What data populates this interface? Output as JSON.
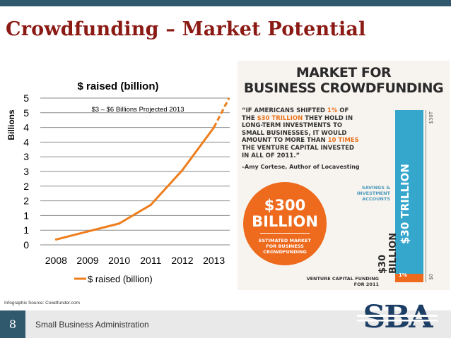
{
  "slide": {
    "title": "Crowdfunding – Market Potential",
    "source": "Infographic  Source: Cowdfunder.com",
    "page_number": "8",
    "footer_text": "Small Business Administration",
    "logo_text": "SBA"
  },
  "chart_data": {
    "type": "line",
    "title": "$ raised (billion)",
    "ylabel": "Billions",
    "xlabel": "",
    "categories": [
      "2008",
      "2009",
      "2010",
      "2011",
      "2012",
      "2013"
    ],
    "y_tick_labels": [
      "0",
      "1",
      "1",
      "2",
      "2",
      "3",
      "3",
      "4",
      "4",
      "5",
      "5"
    ],
    "ylim": [
      0,
      5.5
    ],
    "series": [
      {
        "name": "$ raised (billion)",
        "color": "#ee7d1c",
        "values": [
          0.2,
          0.5,
          0.8,
          1.5,
          2.8,
          4.4
        ],
        "projected": {
          "from": "2013",
          "value": 5.5
        }
      }
    ],
    "annotation": "$3 – $6 Billions Projected 2013",
    "grid": true,
    "legend": "bottom"
  },
  "infographic": {
    "heading_line1": "MARKET FOR",
    "heading_line2": "BUSINESS CROWDFUNDING",
    "quote_parts": [
      {
        "text": "“IF AMERICANS SHIFTED ",
        "hl": false
      },
      {
        "text": "1%",
        "hl": true
      },
      {
        "text": " OF THE ",
        "hl": false
      },
      {
        "text": "$30 TRILLION",
        "hl": true
      },
      {
        "text": " THEY HOLD IN LONG-TERM INVESTMENTS TO SMALL BUSINESSES, IT WOULD AMOUNT TO MORE THAN ",
        "hl": false
      },
      {
        "text": "10 TIMES",
        "hl": true
      },
      {
        "text": " THE VENTURE CAPITAL INVESTED IN ALL OF 2011.”",
        "hl": false
      }
    ],
    "quote_attribution": "–Amy Cortese, Author of Locavesting",
    "circle_big_line1": "$300",
    "circle_big_line2": "BILLION",
    "circle_small": "ESTIMATED MARKET FOR BUSINESS CROWDFUNDING",
    "savings_label": "SAVINGS & INVESTMENT ACCOUNTS",
    "tall_bar_label": "$30 TRILLION",
    "axis_top_label": "$30T",
    "axis_zero_label": "$0",
    "small_bar_label": "1%",
    "thirty_billion_label": "$30 BILLION",
    "vc_label": "VENTURE CAPITAL FUNDING FOR 2011",
    "colors": {
      "orange": "#ee6a1d",
      "blue": "#35a7cd"
    }
  }
}
